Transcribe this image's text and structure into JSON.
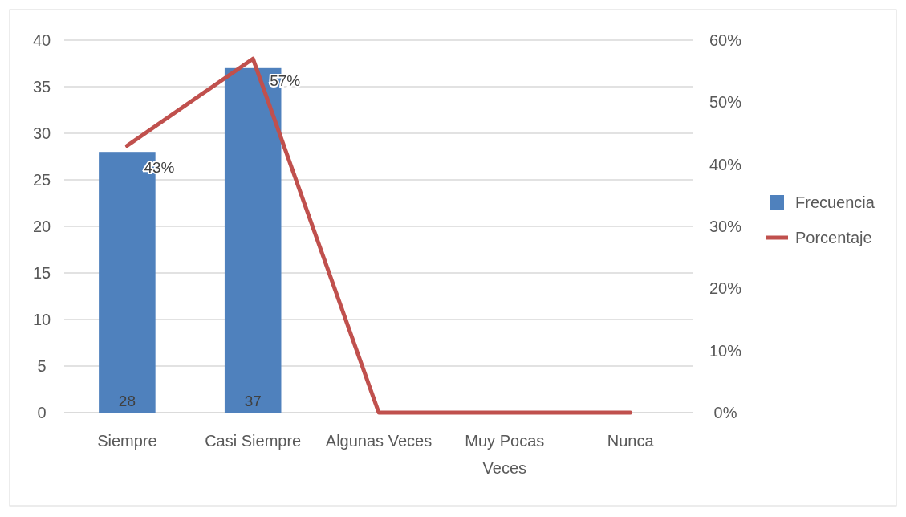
{
  "chart_data": {
    "type": "bar",
    "categories": [
      "Siempre",
      "Casi Siempre",
      "Algunas Veces",
      "Muy Pocas Veces",
      "Nunca"
    ],
    "series": [
      {
        "name": "Frecuencia",
        "color": "#4f81bd",
        "values": [
          28,
          37,
          0,
          0,
          0
        ],
        "value_labels": [
          "28",
          "37",
          null,
          null,
          null
        ]
      },
      {
        "name": "Porcentaje",
        "type": "line",
        "axis": "y2",
        "color": "#c0504d",
        "values": [
          43,
          57,
          0,
          0,
          0
        ],
        "value_labels": [
          "43%",
          "57%",
          null,
          null,
          null
        ]
      }
    ],
    "ylim": [
      0,
      40
    ],
    "yticks": [
      0,
      5,
      10,
      15,
      20,
      25,
      30,
      35,
      40
    ],
    "y2lim": [
      0,
      60
    ],
    "y2ticks": [
      {
        "value": 0,
        "label": "0%"
      },
      {
        "value": 10,
        "label": "10%"
      },
      {
        "value": 20,
        "label": "20%"
      },
      {
        "value": 30,
        "label": "30%"
      },
      {
        "value": 40,
        "label": "40%"
      },
      {
        "value": 50,
        "label": "50%"
      },
      {
        "value": 60,
        "label": "60%"
      }
    ],
    "grid": "y",
    "legend": "right"
  }
}
